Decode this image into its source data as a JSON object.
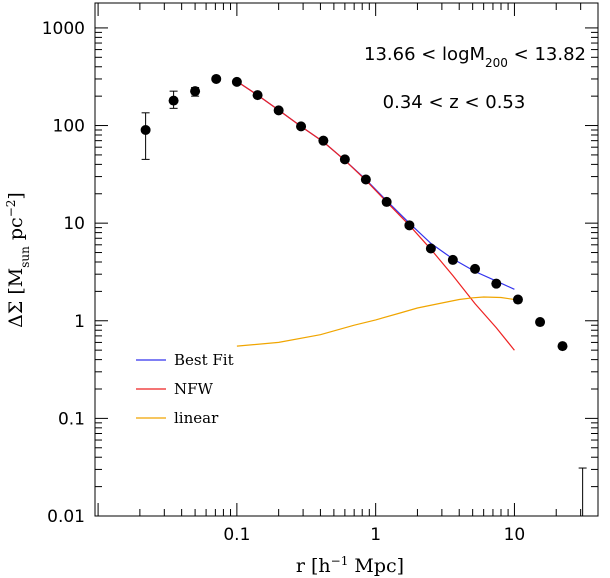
{
  "chart_data": {
    "type": "scatter",
    "xscale": "log",
    "yscale": "log",
    "xlim": [
      0.0095,
      40
    ],
    "ylim": [
      0.01,
      1800
    ],
    "xticks": [
      {
        "value": 0.1,
        "label": "0.1"
      },
      {
        "value": 1,
        "label": "1"
      },
      {
        "value": 10,
        "label": "10"
      }
    ],
    "yticks": [
      {
        "value": 0.01,
        "label": "0.01"
      },
      {
        "value": 0.1,
        "label": "0.1"
      },
      {
        "value": 1,
        "label": "1"
      },
      {
        "value": 10,
        "label": "10"
      },
      {
        "value": 100,
        "label": "100"
      },
      {
        "value": 1000,
        "label": "1000"
      }
    ],
    "xlabel": {
      "base": "r  [h",
      "sup": "−1",
      "tail": " Mpc]"
    },
    "ylabel": {
      "base": "ΔΣ  [M",
      "sub": "sun",
      "mid": "  pc",
      "sup": "−2",
      "tail": "]"
    },
    "annotations": {
      "mass": {
        "pre": "13.66  <  logM",
        "sub": "200",
        "post": "  <  13.82"
      },
      "redshift": "0.34  <  z  <  0.53"
    },
    "points": [
      {
        "x": 0.022,
        "y": 90,
        "ylo": 45,
        "yhi": 135
      },
      {
        "x": 0.035,
        "y": 180,
        "ylo": 150,
        "yhi": 225
      },
      {
        "x": 0.05,
        "y": 225,
        "ylo": 200,
        "yhi": 245
      },
      {
        "x": 0.071,
        "y": 300
      },
      {
        "x": 0.1,
        "y": 280
      },
      {
        "x": 0.141,
        "y": 205
      },
      {
        "x": 0.2,
        "y": 143
      },
      {
        "x": 0.29,
        "y": 98
      },
      {
        "x": 0.42,
        "y": 70
      },
      {
        "x": 0.6,
        "y": 45
      },
      {
        "x": 0.85,
        "y": 28
      },
      {
        "x": 1.2,
        "y": 16.5
      },
      {
        "x": 1.75,
        "y": 9.5
      },
      {
        "x": 2.5,
        "y": 5.5
      },
      {
        "x": 3.6,
        "y": 4.2
      },
      {
        "x": 5.2,
        "y": 3.4
      },
      {
        "x": 7.4,
        "y": 2.4
      },
      {
        "x": 10.6,
        "y": 1.65
      },
      {
        "x": 15.3,
        "y": 0.97
      },
      {
        "x": 22.2,
        "y": 0.55
      }
    ],
    "lone_errorbar": {
      "x": 31,
      "ylo": 0.01,
      "yhi": 0.031
    },
    "series": [
      {
        "name": "Best Fit",
        "color": "#3333ee",
        "x": [
          0.1,
          0.141,
          0.2,
          0.29,
          0.42,
          0.6,
          0.85,
          1.2,
          1.75,
          2.5,
          3.6,
          5.2,
          7.4,
          10
        ],
        "y": [
          283,
          205,
          144,
          98,
          68,
          44,
          28,
          17,
          10,
          6.2,
          4.3,
          3.2,
          2.55,
          2.1
        ]
      },
      {
        "name": "NFW",
        "color": "#ee2222",
        "x": [
          0.1,
          0.141,
          0.2,
          0.29,
          0.42,
          0.6,
          0.85,
          1.2,
          1.75,
          2.5,
          3.6,
          5.2,
          7.4,
          10
        ],
        "y": [
          283,
          205,
          144,
          98,
          68,
          44,
          27.5,
          16.5,
          9.5,
          5.4,
          2.9,
          1.5,
          0.85,
          0.5
        ]
      },
      {
        "name": "linear",
        "color": "#f0a500",
        "x": [
          0.1,
          0.2,
          0.4,
          0.7,
          1,
          1.5,
          2,
          3,
          4,
          5,
          6,
          8,
          10
        ],
        "y": [
          0.55,
          0.6,
          0.72,
          0.9,
          1.02,
          1.2,
          1.35,
          1.52,
          1.65,
          1.72,
          1.75,
          1.73,
          1.65
        ]
      }
    ],
    "legend": {
      "position": "lower-left",
      "entries": [
        "Best Fit",
        "NFW",
        "linear"
      ]
    },
    "grid": false
  }
}
